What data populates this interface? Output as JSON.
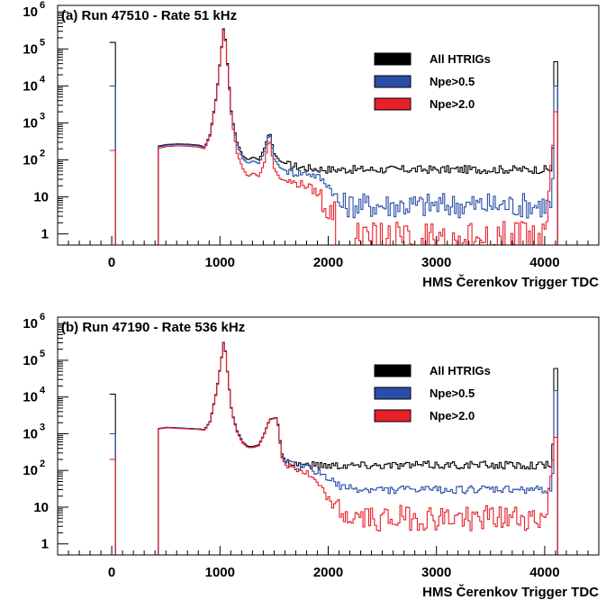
{
  "colors": {
    "all": "#000000",
    "npe05": "#2b4ea8",
    "npe20": "#e8202a"
  },
  "chart_data": [
    {
      "type": "histogram",
      "title": "(a) Run 47510 - Rate 51 kHz",
      "xlabel": "HMS Čerenkov Trigger TDC",
      "ylabel": "",
      "xlim": [
        -500,
        4500
      ],
      "ylim": [
        0.5,
        1500000
      ],
      "yscale": "log",
      "grid": false,
      "legend_position": "top-right",
      "x_ticks": [
        "0",
        "1000",
        "2000",
        "3000",
        "4000"
      ],
      "y_ticks": [
        {
          "base": "1",
          "exp": ""
        },
        {
          "base": "10",
          "exp": ""
        },
        {
          "base": "10",
          "exp": "2"
        },
        {
          "base": "10",
          "exp": "3"
        },
        {
          "base": "10",
          "exp": "4"
        },
        {
          "base": "10",
          "exp": "5"
        },
        {
          "base": "10",
          "exp": "6"
        }
      ],
      "series": [
        {
          "name": "All HTRIGs",
          "key": "all",
          "points": [
            [
              0,
              150000
            ],
            [
              430,
              240
            ],
            [
              500,
              260
            ],
            [
              600,
              270
            ],
            [
              700,
              265
            ],
            [
              800,
              250
            ],
            [
              850,
              220
            ],
            [
              900,
              500
            ],
            [
              960,
              6000
            ],
            [
              1000,
              80000
            ],
            [
              1030,
              500000
            ],
            [
              1060,
              40000
            ],
            [
              1100,
              1500
            ],
            [
              1150,
              300
            ],
            [
              1200,
              130
            ],
            [
              1250,
              100
            ],
            [
              1300,
              120
            ],
            [
              1350,
              100
            ],
            [
              1400,
              200
            ],
            [
              1450,
              600
            ],
            [
              1490,
              150
            ],
            [
              1550,
              90
            ],
            [
              1650,
              70
            ],
            [
              1800,
              60
            ],
            [
              2000,
              55
            ],
            [
              2300,
              55
            ],
            [
              2700,
              55
            ],
            [
              3100,
              55
            ],
            [
              3500,
              55
            ],
            [
              3900,
              55
            ],
            [
              4060,
              55
            ],
            [
              4090,
              45000
            ],
            [
              4130,
              0
            ]
          ]
        },
        {
          "name": "Npe>0.5",
          "key": "npe05",
          "points": [
            [
              0,
              10000
            ],
            [
              430,
              230
            ],
            [
              500,
              250
            ],
            [
              600,
              260
            ],
            [
              700,
              255
            ],
            [
              800,
              240
            ],
            [
              850,
              215
            ],
            [
              900,
              480
            ],
            [
              960,
              5800
            ],
            [
              1000,
              78000
            ],
            [
              1030,
              480000
            ],
            [
              1060,
              38000
            ],
            [
              1100,
              1400
            ],
            [
              1150,
              250
            ],
            [
              1200,
              110
            ],
            [
              1250,
              80
            ],
            [
              1300,
              95
            ],
            [
              1350,
              80
            ],
            [
              1400,
              160
            ],
            [
              1450,
              550
            ],
            [
              1490,
              110
            ],
            [
              1550,
              60
            ],
            [
              1650,
              45
            ],
            [
              1800,
              45
            ],
            [
              1900,
              35
            ],
            [
              2000,
              20
            ],
            [
              2060,
              10
            ],
            [
              2100,
              6
            ],
            [
              2300,
              6
            ],
            [
              2700,
              6
            ],
            [
              3100,
              6
            ],
            [
              3500,
              6
            ],
            [
              3900,
              6
            ],
            [
              4060,
              6
            ],
            [
              4090,
              10000
            ],
            [
              4130,
              0
            ]
          ]
        },
        {
          "name": "Npe>2.0",
          "key": "npe20",
          "points": [
            [
              0,
              180
            ],
            [
              430,
              210
            ],
            [
              500,
              230
            ],
            [
              600,
              240
            ],
            [
              700,
              235
            ],
            [
              800,
              220
            ],
            [
              850,
              200
            ],
            [
              900,
              450
            ],
            [
              960,
              5500
            ],
            [
              1000,
              75000
            ],
            [
              1030,
              460000
            ],
            [
              1060,
              36000
            ],
            [
              1100,
              1200
            ],
            [
              1150,
              150
            ],
            [
              1200,
              60
            ],
            [
              1250,
              35
            ],
            [
              1300,
              45
            ],
            [
              1350,
              35
            ],
            [
              1400,
              80
            ],
            [
              1450,
              400
            ],
            [
              1490,
              60
            ],
            [
              1550,
              30
            ],
            [
              1650,
              25
            ],
            [
              1800,
              20
            ],
            [
              1900,
              12
            ],
            [
              2000,
              4
            ],
            [
              2060,
              0
            ],
            [
              2200,
              1
            ],
            [
              2500,
              1
            ],
            [
              2800,
              1
            ],
            [
              3100,
              1
            ],
            [
              3400,
              1
            ],
            [
              3700,
              1
            ],
            [
              4000,
              1
            ],
            [
              4090,
              2000
            ],
            [
              4130,
              0
            ]
          ]
        }
      ]
    },
    {
      "type": "histogram",
      "title": "(b) Run 47190 - Rate 536 kHz",
      "xlabel": "HMS Čerenkov Trigger TDC",
      "ylabel": "",
      "xlim": [
        -500,
        4500
      ],
      "ylim": [
        0.5,
        1500000
      ],
      "yscale": "log",
      "grid": false,
      "legend_position": "top-right",
      "x_ticks": [
        "0",
        "1000",
        "2000",
        "3000",
        "4000"
      ],
      "y_ticks": [
        {
          "base": "1",
          "exp": ""
        },
        {
          "base": "10",
          "exp": ""
        },
        {
          "base": "10",
          "exp": "2"
        },
        {
          "base": "10",
          "exp": "3"
        },
        {
          "base": "10",
          "exp": "4"
        },
        {
          "base": "10",
          "exp": "5"
        },
        {
          "base": "10",
          "exp": "6"
        }
      ],
      "series": [
        {
          "name": "All HTRIGs",
          "key": "all",
          "points": [
            [
              0,
              12000
            ],
            [
              430,
              1400
            ],
            [
              500,
              1500
            ],
            [
              600,
              1450
            ],
            [
              700,
              1400
            ],
            [
              800,
              1350
            ],
            [
              850,
              1300
            ],
            [
              900,
              2200
            ],
            [
              960,
              15000
            ],
            [
              1000,
              90000
            ],
            [
              1030,
              420000
            ],
            [
              1060,
              50000
            ],
            [
              1100,
              4000
            ],
            [
              1150,
              1200
            ],
            [
              1200,
              600
            ],
            [
              1250,
              450
            ],
            [
              1300,
              450
            ],
            [
              1350,
              500
            ],
            [
              1400,
              1000
            ],
            [
              1450,
              2500
            ],
            [
              1520,
              2800
            ],
            [
              1560,
              300
            ],
            [
              1600,
              170
            ],
            [
              1700,
              150
            ],
            [
              1800,
              140
            ],
            [
              2000,
              140
            ],
            [
              2300,
              140
            ],
            [
              2700,
              140
            ],
            [
              3100,
              140
            ],
            [
              3500,
              140
            ],
            [
              3900,
              140
            ],
            [
              4060,
              140
            ],
            [
              4090,
              60000
            ],
            [
              4130,
              0
            ]
          ]
        },
        {
          "name": "Npe>0.5",
          "key": "npe05",
          "points": [
            [
              0,
              1000
            ],
            [
              430,
              1380
            ],
            [
              500,
              1480
            ],
            [
              600,
              1430
            ],
            [
              700,
              1380
            ],
            [
              800,
              1330
            ],
            [
              850,
              1280
            ],
            [
              900,
              2150
            ],
            [
              960,
              14500
            ],
            [
              1000,
              88000
            ],
            [
              1030,
              410000
            ],
            [
              1060,
              49000
            ],
            [
              1100,
              3900
            ],
            [
              1150,
              1150
            ],
            [
              1200,
              580
            ],
            [
              1250,
              430
            ],
            [
              1300,
              430
            ],
            [
              1350,
              480
            ],
            [
              1400,
              980
            ],
            [
              1450,
              2450
            ],
            [
              1520,
              2750
            ],
            [
              1560,
              250
            ],
            [
              1600,
              160
            ],
            [
              1700,
              130
            ],
            [
              1800,
              120
            ],
            [
              1900,
              90
            ],
            [
              2000,
              60
            ],
            [
              2100,
              35
            ],
            [
              2300,
              30
            ],
            [
              2700,
              30
            ],
            [
              3100,
              30
            ],
            [
              3500,
              30
            ],
            [
              3900,
              30
            ],
            [
              4060,
              30
            ],
            [
              4090,
              15000
            ],
            [
              4130,
              0
            ]
          ]
        },
        {
          "name": "Npe>2.0",
          "key": "npe20",
          "points": [
            [
              0,
              200
            ],
            [
              430,
              1350
            ],
            [
              500,
              1450
            ],
            [
              600,
              1400
            ],
            [
              700,
              1350
            ],
            [
              800,
              1300
            ],
            [
              850,
              1250
            ],
            [
              900,
              2100
            ],
            [
              960,
              14000
            ],
            [
              1000,
              86000
            ],
            [
              1030,
              400000
            ],
            [
              1060,
              48000
            ],
            [
              1100,
              3800
            ],
            [
              1150,
              1100
            ],
            [
              1200,
              560
            ],
            [
              1250,
              420
            ],
            [
              1300,
              420
            ],
            [
              1350,
              470
            ],
            [
              1400,
              960
            ],
            [
              1450,
              2400
            ],
            [
              1520,
              2700
            ],
            [
              1560,
              230
            ],
            [
              1600,
              140
            ],
            [
              1700,
              110
            ],
            [
              1800,
              80
            ],
            [
              1900,
              40
            ],
            [
              2000,
              15
            ],
            [
              2100,
              7
            ],
            [
              2200,
              5
            ],
            [
              2500,
              5
            ],
            [
              2800,
              5
            ],
            [
              3100,
              5
            ],
            [
              3400,
              5
            ],
            [
              3700,
              5
            ],
            [
              4000,
              5
            ],
            [
              4090,
              800
            ],
            [
              4130,
              0
            ]
          ]
        }
      ]
    }
  ]
}
